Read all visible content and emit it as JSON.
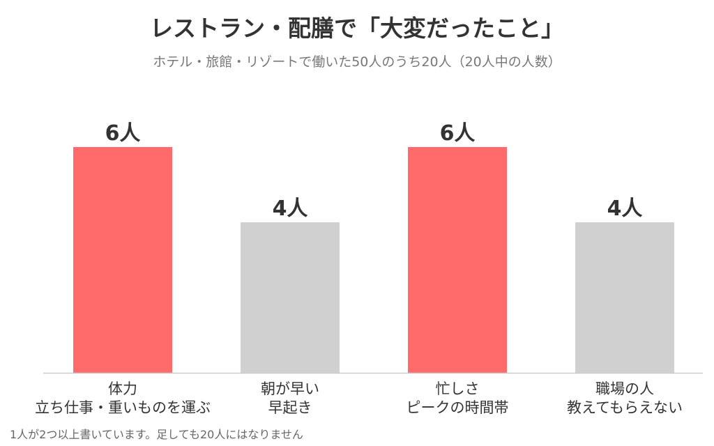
{
  "title": "レストラン・配膳で「大変だったこと」",
  "subtitle": "ホテル・旅館・リゾートで働いた50人のうち20人（20人中の人数）",
  "footnote": "1人が2つ以上書いています。足しても20人にはなりません",
  "chart_data": {
    "type": "bar",
    "title": "レストラン・配膳で「大変だったこと」",
    "subtitle": "ホテル・旅館・リゾートで働いた50人のうち20人（20人中の人数）",
    "categories": [
      [
        "体力",
        "立ち仕事・重いものを運ぶ"
      ],
      [
        "朝が早い",
        "早起き"
      ],
      [
        "忙しさ",
        "ピークの時間帯"
      ],
      [
        "職場の人",
        "教えてもらえない"
      ]
    ],
    "values": [
      6,
      4,
      6,
      4
    ],
    "value_labels": [
      "6人",
      "4人",
      "6人",
      "4人"
    ],
    "highlight": [
      true,
      false,
      true,
      false
    ],
    "colors": {
      "highlight": "#ff6b6b",
      "normal": "#d0d0d0",
      "axis": "#cccccc",
      "label": "#333333"
    },
    "ylim": [
      0,
      6
    ],
    "xlabel": "",
    "ylabel": "",
    "grid": false,
    "legend": "none"
  }
}
